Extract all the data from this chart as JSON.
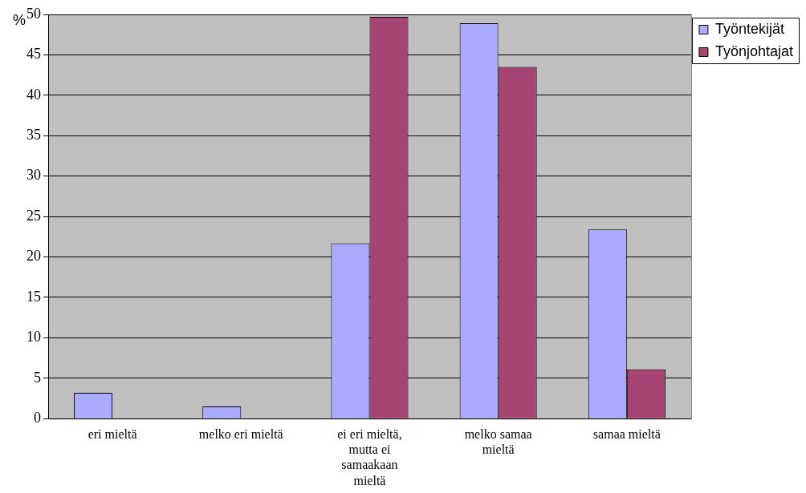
{
  "chart_data": {
    "type": "bar",
    "ylabel": "%",
    "categories": [
      "eri mieltä",
      "melko eri mieltä",
      "ei eri mieltä, mutta ei samaakaan mieltä",
      "melko samaa mieltä",
      "samaa mieltä"
    ],
    "series": [
      {
        "name": "Työntekijät",
        "color": "#aaaaff",
        "values": [
          3.2,
          1.5,
          21.7,
          48.9,
          23.4
        ]
      },
      {
        "name": "Työnjohtajat",
        "color": "#a64573",
        "values": [
          0,
          0,
          49.7,
          43.5,
          6.1
        ]
      }
    ],
    "ylim": [
      0,
      50
    ],
    "yticks": [
      0,
      5,
      10,
      15,
      20,
      25,
      30,
      35,
      40,
      45,
      50
    ],
    "grid": "y",
    "legend": "top right"
  }
}
